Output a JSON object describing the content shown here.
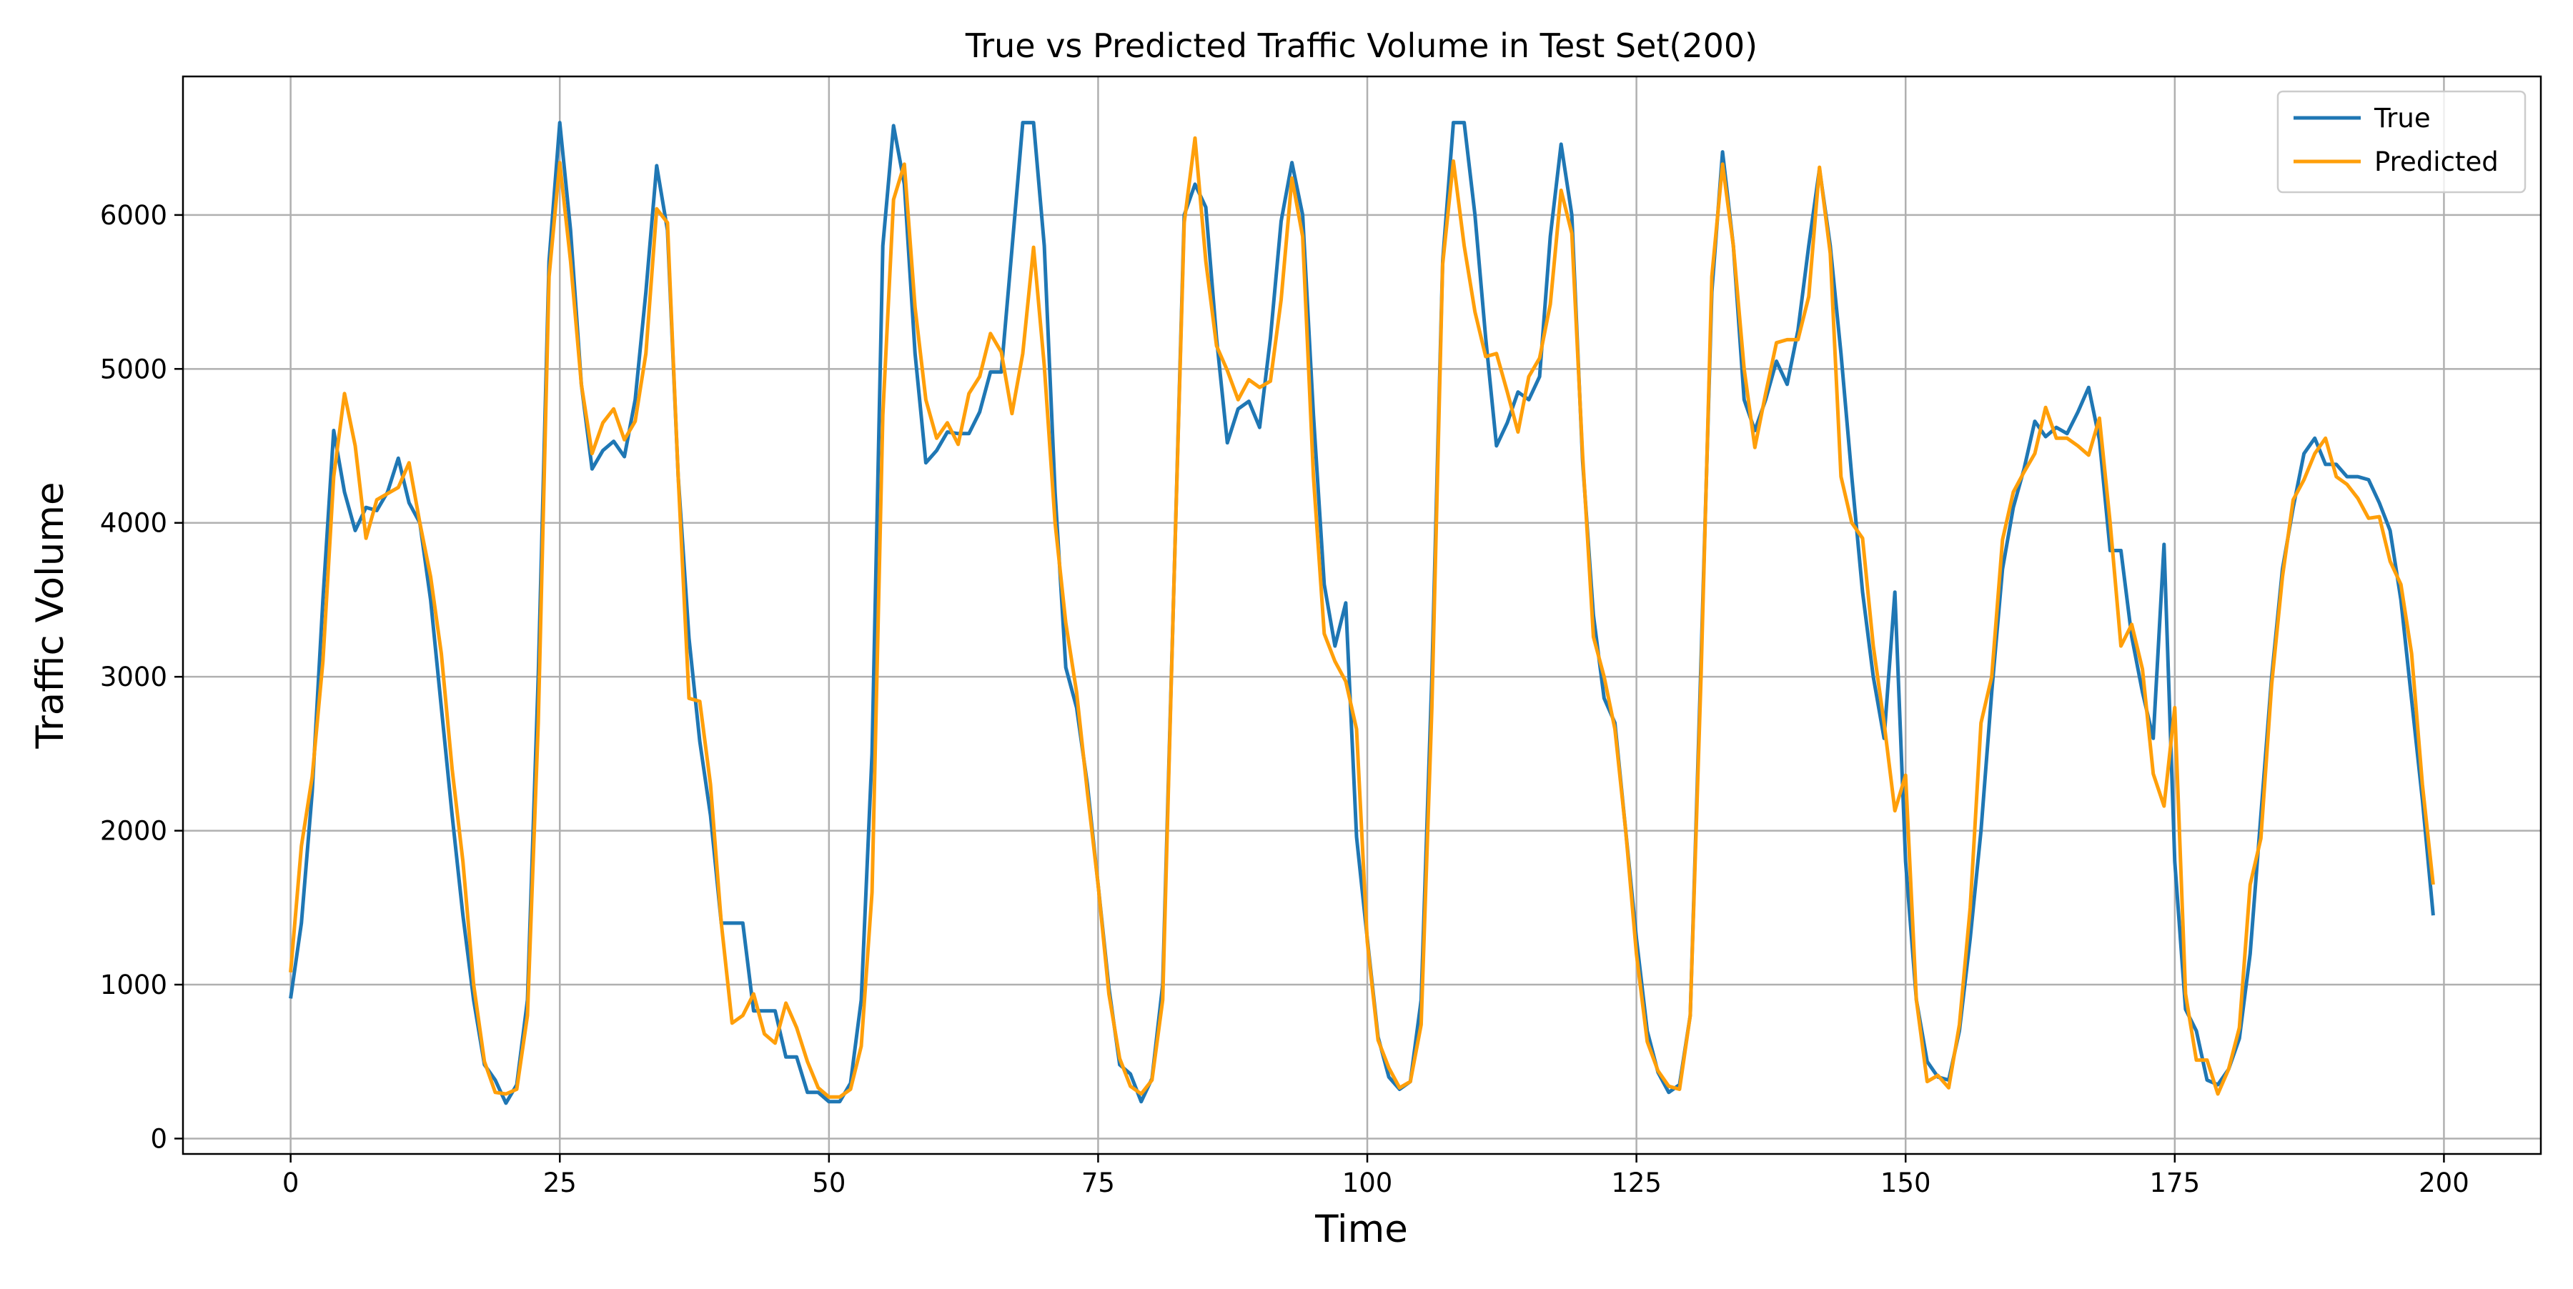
{
  "chart_data": {
    "type": "line",
    "title": "True vs Predicted Traffic Volume in Test Set(200)",
    "xlabel": "Time",
    "ylabel": "Traffic Volume",
    "xlim": [
      -10,
      209
    ],
    "ylim": [
      -100,
      6900
    ],
    "xticks": [
      0,
      25,
      50,
      75,
      100,
      125,
      150,
      175,
      200
    ],
    "yticks": [
      0,
      1000,
      2000,
      3000,
      4000,
      5000,
      6000
    ],
    "grid": true,
    "legend_position": "top-right",
    "series": [
      {
        "name": "True",
        "color": "#1f77b4",
        "values": [
          910,
          1400,
          2250,
          3500,
          4600,
          4200,
          3950,
          4100,
          4080,
          4200,
          4420,
          4130,
          4000,
          3500,
          2800,
          2100,
          1450,
          900,
          480,
          380,
          230,
          350,
          900,
          3000,
          5700,
          6600,
          5900,
          4900,
          4350,
          4470,
          4530,
          4430,
          4800,
          5500,
          6320,
          5900,
          4300,
          3250,
          2580,
          2100,
          1400,
          1400,
          1400,
          830,
          830,
          830,
          530,
          530,
          300,
          300,
          240,
          240,
          360,
          900,
          2500,
          5800,
          6580,
          6200,
          5100,
          4390,
          4470,
          4590,
          4580,
          4580,
          4720,
          4980,
          4980,
          5780,
          6600,
          6600,
          5800,
          4200,
          3060,
          2800,
          2300,
          1650,
          980,
          480,
          420,
          240,
          390,
          1000,
          3500,
          6000,
          6200,
          6050,
          5200,
          4520,
          4740,
          4790,
          4620,
          5200,
          5960,
          6340,
          6000,
          4700,
          3600,
          3200,
          3480,
          1960,
          1300,
          660,
          400,
          320,
          370,
          900,
          3000,
          5700,
          6600,
          6600,
          6000,
          5200,
          4500,
          4650,
          4850,
          4800,
          4950,
          5860,
          6460,
          6000,
          4400,
          3400,
          2860,
          2700,
          2000,
          1300,
          700,
          430,
          300,
          350,
          800,
          3100,
          5500,
          6410,
          5800,
          4800,
          4600,
          4800,
          5050,
          4900,
          5250,
          5800,
          6300,
          5800,
          5100,
          4300,
          3550,
          3000,
          2600,
          3550,
          1800,
          900,
          500,
          400,
          380,
          700,
          1300,
          2000,
          2900,
          3700,
          4100,
          4350,
          4660,
          4560,
          4620,
          4580,
          4720,
          4880,
          4540,
          3820,
          3820,
          3260,
          2900,
          2600,
          3860,
          1800,
          840,
          700,
          380,
          350,
          450,
          650,
          1200,
          2100,
          3000,
          3700,
          4100,
          4450,
          4550,
          4380,
          4380,
          4300,
          4300,
          4280,
          4130,
          3950,
          3500,
          2850,
          2200,
          1450
        ]
      },
      {
        "name": "Predicted",
        "color": "#ff9f0a",
        "values": [
          1080,
          1900,
          2350,
          3100,
          4300,
          4840,
          4500,
          3900,
          4150,
          4190,
          4230,
          4390,
          4000,
          3650,
          3150,
          2400,
          1800,
          1000,
          500,
          300,
          290,
          320,
          800,
          2700,
          5600,
          6340,
          5700,
          4900,
          4450,
          4650,
          4740,
          4540,
          4660,
          5100,
          6040,
          5950,
          4300,
          2860,
          2840,
          2300,
          1400,
          750,
          800,
          940,
          680,
          620,
          880,
          720,
          500,
          330,
          270,
          270,
          320,
          600,
          1600,
          4700,
          6100,
          6330,
          5400,
          4800,
          4550,
          4650,
          4510,
          4840,
          4950,
          5230,
          5110,
          4710,
          5100,
          5790,
          5020,
          4000,
          3350,
          2900,
          2250,
          1650,
          940,
          520,
          340,
          290,
          380,
          900,
          3500,
          5950,
          6500,
          5700,
          5150,
          4990,
          4800,
          4930,
          4880,
          4920,
          5450,
          6240,
          5860,
          4300,
          3280,
          3100,
          2970,
          2660,
          1280,
          640,
          460,
          330,
          370,
          740,
          2800,
          5680,
          6350,
          5800,
          5370,
          5080,
          5100,
          4850,
          4590,
          4950,
          5070,
          5420,
          6160,
          5880,
          4440,
          3260,
          3000,
          2660,
          2000,
          1200,
          630,
          440,
          340,
          320,
          800,
          3000,
          5600,
          6330,
          5800,
          5000,
          4490,
          4840,
          5170,
          5190,
          5190,
          5470,
          6310,
          5750,
          4300,
          4000,
          3900,
          3200,
          2700,
          2130,
          2360,
          900,
          370,
          410,
          330,
          740,
          1500,
          2700,
          3000,
          3890,
          4200,
          4330,
          4450,
          4750,
          4550,
          4550,
          4500,
          4440,
          4680,
          4000,
          3200,
          3340,
          3050,
          2370,
          2160,
          2800,
          940,
          510,
          510,
          290,
          450,
          720,
          1650,
          1950,
          2950,
          3650,
          4150,
          4280,
          4450,
          4550,
          4300,
          4250,
          4160,
          4030,
          4040,
          3750,
          3600,
          3150,
          2300,
          1650
        ]
      }
    ]
  }
}
